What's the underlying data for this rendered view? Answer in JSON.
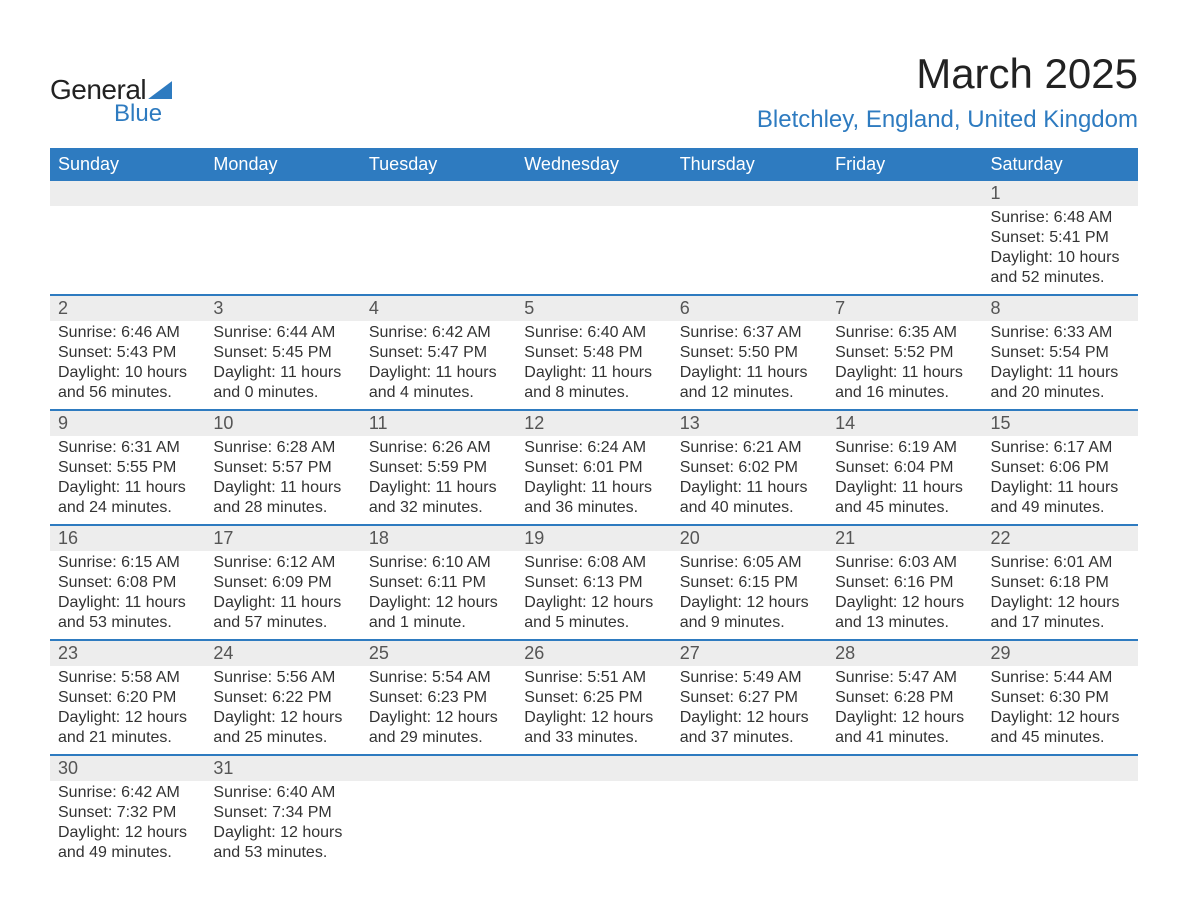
{
  "logo": {
    "word1": "General",
    "word2": "Blue"
  },
  "title": "March 2025",
  "location": "Bletchley, England, United Kingdom",
  "colors": {
    "accent": "#2e7bc0",
    "header_bg": "#2e7bc0",
    "header_fg": "#ffffff",
    "daynum_bg": "#ededed",
    "daynum_fg": "#555555",
    "text": "#333333",
    "background": "#ffffff"
  },
  "typography": {
    "title_fontsize": 42,
    "location_fontsize": 24,
    "header_fontsize": 18,
    "daynum_fontsize": 18,
    "body_fontsize": 16
  },
  "weekdays": [
    "Sunday",
    "Monday",
    "Tuesday",
    "Wednesday",
    "Thursday",
    "Friday",
    "Saturday"
  ],
  "weeks": [
    [
      null,
      null,
      null,
      null,
      null,
      null,
      {
        "n": "1",
        "sr": "Sunrise: 6:48 AM",
        "ss": "Sunset: 5:41 PM",
        "d1": "Daylight: 10 hours",
        "d2": "and 52 minutes."
      }
    ],
    [
      {
        "n": "2",
        "sr": "Sunrise: 6:46 AM",
        "ss": "Sunset: 5:43 PM",
        "d1": "Daylight: 10 hours",
        "d2": "and 56 minutes."
      },
      {
        "n": "3",
        "sr": "Sunrise: 6:44 AM",
        "ss": "Sunset: 5:45 PM",
        "d1": "Daylight: 11 hours",
        "d2": "and 0 minutes."
      },
      {
        "n": "4",
        "sr": "Sunrise: 6:42 AM",
        "ss": "Sunset: 5:47 PM",
        "d1": "Daylight: 11 hours",
        "d2": "and 4 minutes."
      },
      {
        "n": "5",
        "sr": "Sunrise: 6:40 AM",
        "ss": "Sunset: 5:48 PM",
        "d1": "Daylight: 11 hours",
        "d2": "and 8 minutes."
      },
      {
        "n": "6",
        "sr": "Sunrise: 6:37 AM",
        "ss": "Sunset: 5:50 PM",
        "d1": "Daylight: 11 hours",
        "d2": "and 12 minutes."
      },
      {
        "n": "7",
        "sr": "Sunrise: 6:35 AM",
        "ss": "Sunset: 5:52 PM",
        "d1": "Daylight: 11 hours",
        "d2": "and 16 minutes."
      },
      {
        "n": "8",
        "sr": "Sunrise: 6:33 AM",
        "ss": "Sunset: 5:54 PM",
        "d1": "Daylight: 11 hours",
        "d2": "and 20 minutes."
      }
    ],
    [
      {
        "n": "9",
        "sr": "Sunrise: 6:31 AM",
        "ss": "Sunset: 5:55 PM",
        "d1": "Daylight: 11 hours",
        "d2": "and 24 minutes."
      },
      {
        "n": "10",
        "sr": "Sunrise: 6:28 AM",
        "ss": "Sunset: 5:57 PM",
        "d1": "Daylight: 11 hours",
        "d2": "and 28 minutes."
      },
      {
        "n": "11",
        "sr": "Sunrise: 6:26 AM",
        "ss": "Sunset: 5:59 PM",
        "d1": "Daylight: 11 hours",
        "d2": "and 32 minutes."
      },
      {
        "n": "12",
        "sr": "Sunrise: 6:24 AM",
        "ss": "Sunset: 6:01 PM",
        "d1": "Daylight: 11 hours",
        "d2": "and 36 minutes."
      },
      {
        "n": "13",
        "sr": "Sunrise: 6:21 AM",
        "ss": "Sunset: 6:02 PM",
        "d1": "Daylight: 11 hours",
        "d2": "and 40 minutes."
      },
      {
        "n": "14",
        "sr": "Sunrise: 6:19 AM",
        "ss": "Sunset: 6:04 PM",
        "d1": "Daylight: 11 hours",
        "d2": "and 45 minutes."
      },
      {
        "n": "15",
        "sr": "Sunrise: 6:17 AM",
        "ss": "Sunset: 6:06 PM",
        "d1": "Daylight: 11 hours",
        "d2": "and 49 minutes."
      }
    ],
    [
      {
        "n": "16",
        "sr": "Sunrise: 6:15 AM",
        "ss": "Sunset: 6:08 PM",
        "d1": "Daylight: 11 hours",
        "d2": "and 53 minutes."
      },
      {
        "n": "17",
        "sr": "Sunrise: 6:12 AM",
        "ss": "Sunset: 6:09 PM",
        "d1": "Daylight: 11 hours",
        "d2": "and 57 minutes."
      },
      {
        "n": "18",
        "sr": "Sunrise: 6:10 AM",
        "ss": "Sunset: 6:11 PM",
        "d1": "Daylight: 12 hours",
        "d2": "and 1 minute."
      },
      {
        "n": "19",
        "sr": "Sunrise: 6:08 AM",
        "ss": "Sunset: 6:13 PM",
        "d1": "Daylight: 12 hours",
        "d2": "and 5 minutes."
      },
      {
        "n": "20",
        "sr": "Sunrise: 6:05 AM",
        "ss": "Sunset: 6:15 PM",
        "d1": "Daylight: 12 hours",
        "d2": "and 9 minutes."
      },
      {
        "n": "21",
        "sr": "Sunrise: 6:03 AM",
        "ss": "Sunset: 6:16 PM",
        "d1": "Daylight: 12 hours",
        "d2": "and 13 minutes."
      },
      {
        "n": "22",
        "sr": "Sunrise: 6:01 AM",
        "ss": "Sunset: 6:18 PM",
        "d1": "Daylight: 12 hours",
        "d2": "and 17 minutes."
      }
    ],
    [
      {
        "n": "23",
        "sr": "Sunrise: 5:58 AM",
        "ss": "Sunset: 6:20 PM",
        "d1": "Daylight: 12 hours",
        "d2": "and 21 minutes."
      },
      {
        "n": "24",
        "sr": "Sunrise: 5:56 AM",
        "ss": "Sunset: 6:22 PM",
        "d1": "Daylight: 12 hours",
        "d2": "and 25 minutes."
      },
      {
        "n": "25",
        "sr": "Sunrise: 5:54 AM",
        "ss": "Sunset: 6:23 PM",
        "d1": "Daylight: 12 hours",
        "d2": "and 29 minutes."
      },
      {
        "n": "26",
        "sr": "Sunrise: 5:51 AM",
        "ss": "Sunset: 6:25 PM",
        "d1": "Daylight: 12 hours",
        "d2": "and 33 minutes."
      },
      {
        "n": "27",
        "sr": "Sunrise: 5:49 AM",
        "ss": "Sunset: 6:27 PM",
        "d1": "Daylight: 12 hours",
        "d2": "and 37 minutes."
      },
      {
        "n": "28",
        "sr": "Sunrise: 5:47 AM",
        "ss": "Sunset: 6:28 PM",
        "d1": "Daylight: 12 hours",
        "d2": "and 41 minutes."
      },
      {
        "n": "29",
        "sr": "Sunrise: 5:44 AM",
        "ss": "Sunset: 6:30 PM",
        "d1": "Daylight: 12 hours",
        "d2": "and 45 minutes."
      }
    ],
    [
      {
        "n": "30",
        "sr": "Sunrise: 6:42 AM",
        "ss": "Sunset: 7:32 PM",
        "d1": "Daylight: 12 hours",
        "d2": "and 49 minutes."
      },
      {
        "n": "31",
        "sr": "Sunrise: 6:40 AM",
        "ss": "Sunset: 7:34 PM",
        "d1": "Daylight: 12 hours",
        "d2": "and 53 minutes."
      },
      null,
      null,
      null,
      null,
      null
    ]
  ]
}
